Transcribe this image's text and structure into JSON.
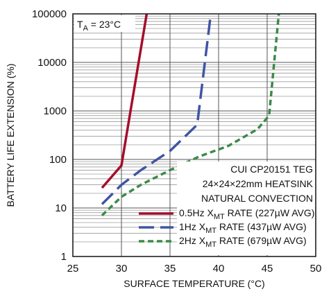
{
  "chart_data": {
    "type": "line",
    "x_scale": "linear",
    "y_scale": "log",
    "xlim": [
      25,
      50
    ],
    "ylim": [
      1,
      100000
    ],
    "xlabel": "SURFACE TEMPERATURE (°C)",
    "ylabel": "BATTERY LIFE EXTENSION (%)",
    "x_ticks": [
      "25",
      "30",
      "35",
      "40",
      "45",
      "50"
    ],
    "y_ticks": [
      "1",
      "10",
      "100",
      "1000",
      "10000",
      "100000"
    ],
    "grid": true,
    "condition": {
      "prefix": "T",
      "subscript": "A",
      "suffix": " = 23°C"
    },
    "annotation_lines": [
      "CUI CP20151 TEG",
      "24×24×22mm HEATSINK",
      "NATURAL CONVECTION"
    ],
    "legend_placement": "bottom-right",
    "series": [
      {
        "name_prefix": "0.5Hz X",
        "name_sub": "MT",
        "name_suffix": " RATE (227µW AVG)",
        "color": "#a50d2b",
        "dash": "solid",
        "x": [
          28,
          30,
          32.6
        ],
        "y": [
          26,
          75,
          100000
        ]
      },
      {
        "name_prefix": "1Hz X",
        "name_sub": "MT",
        "name_suffix": " RATE (437µW AVG)",
        "color": "#3f55a3",
        "dash": "long",
        "x": [
          28,
          30,
          32,
          35,
          37.8,
          39.2
        ],
        "y": [
          12,
          30,
          60,
          150,
          520,
          100000
        ]
      },
      {
        "name_prefix": "2Hz X",
        "name_sub": "MT",
        "name_suffix": " RATE (679µW AVG)",
        "color": "#3c8a48",
        "dash": "short",
        "x": [
          28,
          30,
          32,
          35,
          38,
          41,
          44,
          45.2,
          46.2
        ],
        "y": [
          7,
          17,
          30,
          60,
          115,
          190,
          420,
          800,
          100000
        ]
      }
    ]
  }
}
